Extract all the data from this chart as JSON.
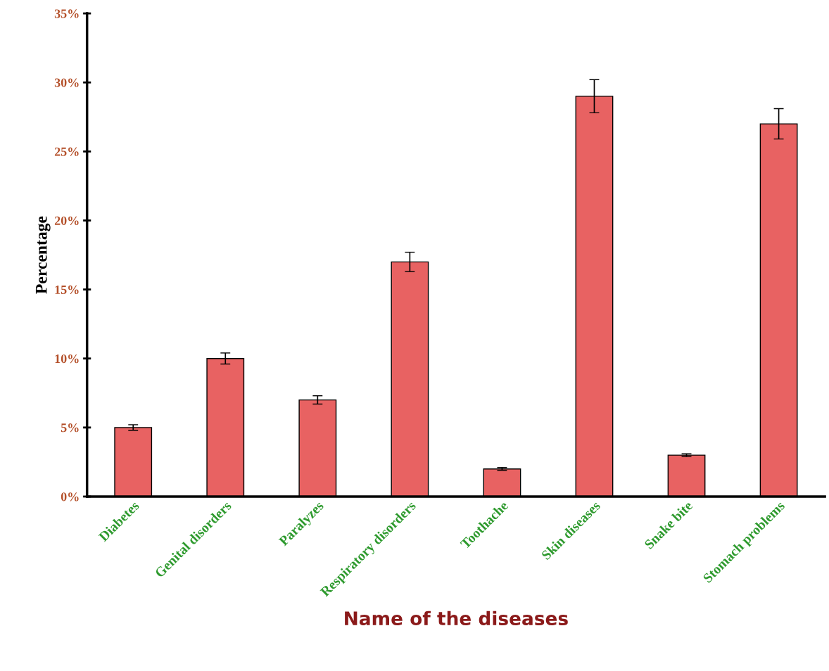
{
  "chart_data": {
    "type": "bar",
    "xlabel": "Name of the diseases",
    "ylabel": "Percentage",
    "categories": [
      "Diabetes",
      "Genital disorders",
      "Paralyzes",
      "Respiratory disorders",
      "Toothache",
      "Skin diseases",
      "Snake bite",
      "Stomach problems"
    ],
    "values": [
      5,
      10,
      7,
      17,
      2,
      29,
      3,
      27
    ],
    "errors": [
      0.2,
      0.4,
      0.3,
      0.7,
      0.1,
      1.2,
      0.1,
      1.1
    ],
    "color": "#e86262",
    "ylim": [
      0,
      35
    ],
    "yticks": [
      {
        "value": 0,
        "label": "0%"
      },
      {
        "value": 5,
        "label": "5%"
      },
      {
        "value": 10,
        "label": "10%"
      },
      {
        "value": 15,
        "label": "15%"
      },
      {
        "value": 20,
        "label": "20%"
      },
      {
        "value": 25,
        "label": "25%"
      },
      {
        "value": 30,
        "label": "30%"
      },
      {
        "value": 35,
        "label": "35%"
      }
    ],
    "grid": false,
    "legend": false
  }
}
